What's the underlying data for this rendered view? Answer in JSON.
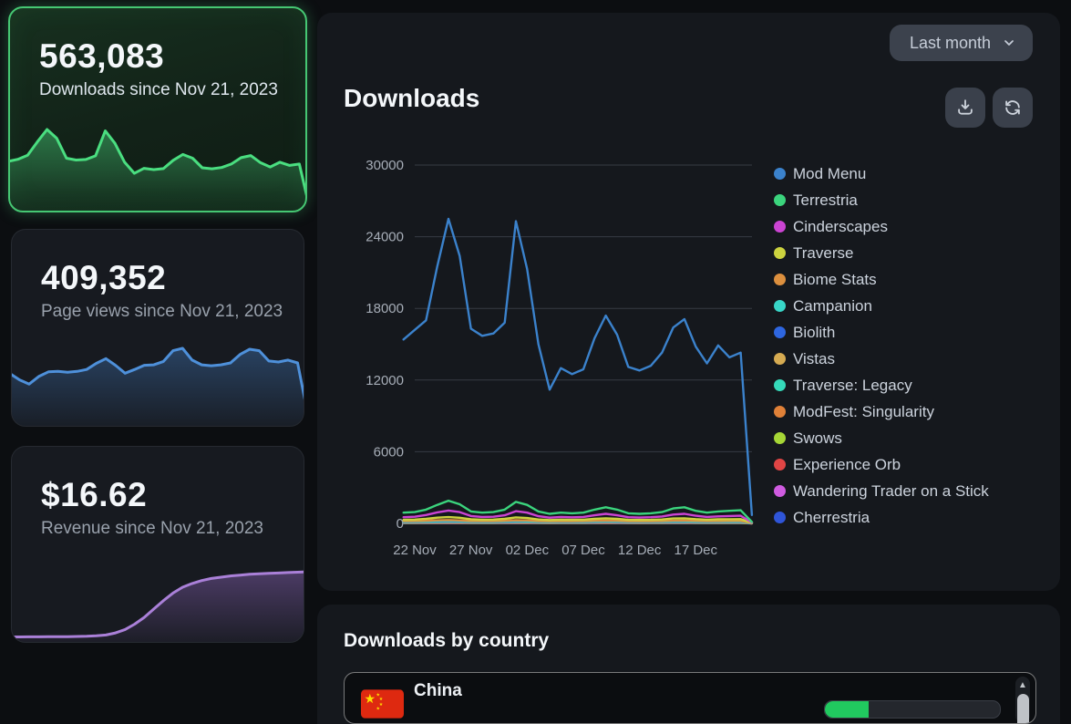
{
  "stat_cards": [
    {
      "id": "downloads",
      "value": "563,083",
      "label": "Downloads since Nov 21, 2023",
      "selected": true,
      "line_color": "#4ade80",
      "fill_color": "74,222,128",
      "spark": [
        17500,
        18300,
        19800,
        24800,
        29500,
        26200,
        18700,
        18000,
        18200,
        19600,
        29000,
        24300,
        17200,
        13000,
        14900,
        14400,
        14800,
        17900,
        20100,
        18700,
        15100,
        14700,
        15200,
        16500,
        18900,
        19700,
        17000,
        15400,
        17200,
        16000,
        16500,
        900
      ]
    },
    {
      "id": "page_views",
      "value": "409,352",
      "label": "Page views since Nov 21, 2023",
      "selected": false,
      "line_color": "#4e90da",
      "fill_color": "62,114,176",
      "spark": [
        10500,
        9200,
        8300,
        9900,
        10900,
        11000,
        10800,
        11000,
        11400,
        12700,
        13700,
        12300,
        10600,
        11400,
        12300,
        12400,
        13100,
        15400,
        15900,
        13400,
        12400,
        12200,
        12400,
        12800,
        14600,
        15700,
        15400,
        13200,
        13000,
        13400,
        12800,
        2500
      ]
    },
    {
      "id": "revenue",
      "value": "$16.62",
      "label": "Revenue since Nov 21, 2023",
      "selected": false,
      "line_color": "#aa80d8",
      "fill_color": "140,100,185",
      "spark": [
        0.55,
        0.55,
        0.56,
        0.57,
        0.58,
        0.6,
        0.62,
        0.65,
        0.7,
        0.8,
        1.0,
        1.5,
        2.3,
        3.6,
        5.2,
        7.2,
        9.2,
        11.0,
        12.4,
        13.3,
        14.0,
        14.5,
        14.8,
        15.1,
        15.3,
        15.5,
        15.6,
        15.7,
        15.8,
        15.9,
        16.0,
        16.1
      ]
    }
  ],
  "downloads_panel": {
    "title": "Downloads",
    "range_selector_label": "Last month"
  },
  "chart_data": {
    "type": "line",
    "title": "Downloads",
    "x": [
      "21 Nov",
      "22 Nov",
      "23 Nov",
      "24 Nov",
      "25 Nov",
      "26 Nov",
      "27 Nov",
      "28 Nov",
      "29 Nov",
      "30 Nov",
      "01 Dec",
      "02 Dec",
      "03 Dec",
      "04 Dec",
      "05 Dec",
      "06 Dec",
      "07 Dec",
      "08 Dec",
      "09 Dec",
      "10 Dec",
      "11 Dec",
      "12 Dec",
      "13 Dec",
      "14 Dec",
      "15 Dec",
      "16 Dec",
      "17 Dec",
      "18 Dec",
      "19 Dec",
      "20 Dec",
      "21 Dec",
      "22 Dec"
    ],
    "x_tick_labels": [
      "22 Nov",
      "27 Nov",
      "02 Dec",
      "07 Dec",
      "12 Dec",
      "17 Dec"
    ],
    "x_tick_indices": [
      1,
      6,
      11,
      16,
      21,
      26
    ],
    "y_ticks": [
      0,
      6000,
      12000,
      18000,
      24000,
      30000
    ],
    "ylim": [
      0,
      30000
    ],
    "grid": "horizontal",
    "legend_position": "right",
    "series": [
      {
        "name": "Mod Menu",
        "color": "#3b82cc",
        "values": [
          15400,
          16200,
          17000,
          21500,
          25500,
          22400,
          16300,
          15700,
          15900,
          16800,
          25300,
          21300,
          15000,
          11200,
          13000,
          12500,
          12900,
          15500,
          17400,
          15800,
          13100,
          12800,
          13200,
          14300,
          16400,
          17100,
          14800,
          13400,
          14900,
          13900,
          14300,
          700
        ]
      },
      {
        "name": "Terrestria",
        "color": "#3bd47d",
        "values": [
          900,
          950,
          1150,
          1550,
          1900,
          1600,
          1000,
          900,
          950,
          1150,
          1800,
          1550,
          1000,
          800,
          900,
          850,
          900,
          1150,
          1350,
          1150,
          850,
          800,
          850,
          950,
          1250,
          1350,
          1050,
          900,
          1000,
          1050,
          1100,
          120
        ]
      },
      {
        "name": "Cinderscapes",
        "color": "#cb44d3",
        "values": [
          520,
          560,
          700,
          920,
          1080,
          950,
          620,
          540,
          560,
          680,
          1020,
          900,
          600,
          480,
          540,
          510,
          540,
          680,
          800,
          680,
          520,
          490,
          520,
          580,
          740,
          800,
          640,
          540,
          590,
          620,
          640,
          80
        ]
      },
      {
        "name": "Traverse",
        "color": "#ccd33f",
        "values": [
          300,
          320,
          390,
          480,
          530,
          470,
          340,
          310,
          320,
          380,
          500,
          450,
          330,
          280,
          310,
          300,
          310,
          380,
          430,
          380,
          300,
          290,
          300,
          330,
          410,
          430,
          360,
          310,
          340,
          350,
          360,
          50
        ]
      },
      {
        "name": "Biome Stats",
        "color": "#dc8f3e",
        "values": [
          195,
          205,
          230,
          260,
          280,
          255,
          205,
          195,
          200,
          225,
          265,
          250,
          200,
          180,
          195,
          190,
          195,
          225,
          245,
          225,
          190,
          185,
          190,
          205,
          235,
          245,
          210,
          195,
          205,
          210,
          215,
          30
        ]
      },
      {
        "name": "Campanion",
        "color": "#38d6c8",
        "values": [
          150,
          157,
          175,
          198,
          213,
          196,
          157,
          150,
          153,
          172,
          203,
          191,
          153,
          138,
          150,
          146,
          150,
          172,
          187,
          172,
          146,
          142,
          146,
          157,
          180,
          187,
          161,
          150,
          157,
          161,
          165,
          25
        ]
      },
      {
        "name": "Biolith",
        "color": "#2e66e0",
        "values": [
          115,
          120,
          134,
          152,
          163,
          150,
          121,
          115,
          117,
          132,
          156,
          146,
          117,
          106,
          115,
          112,
          115,
          132,
          143,
          132,
          112,
          109,
          112,
          120,
          138,
          143,
          123,
          115,
          120,
          123,
          126,
          19
        ]
      },
      {
        "name": "Vistas",
        "color": "#d6ab52",
        "values": [
          90,
          94,
          105,
          119,
          128,
          118,
          95,
          90,
          92,
          103,
          122,
          115,
          92,
          83,
          90,
          88,
          90,
          103,
          112,
          103,
          88,
          85,
          88,
          94,
          108,
          112,
          96,
          90,
          94,
          96,
          99,
          15
        ]
      },
      {
        "name": "Traverse: Legacy",
        "color": "#35d9b9",
        "values": [
          72,
          75,
          84,
          95,
          102,
          94,
          76,
          72,
          73,
          82,
          98,
          92,
          73,
          66,
          72,
          70,
          72,
          82,
          90,
          82,
          70,
          68,
          70,
          75,
          86,
          90,
          77,
          72,
          75,
          77,
          79,
          12
        ]
      },
      {
        "name": "ModFest: Singularity",
        "color": "#e08138",
        "values": [
          58,
          61,
          68,
          77,
          82,
          76,
          61,
          58,
          59,
          66,
          79,
          74,
          59,
          53,
          58,
          56,
          58,
          66,
          72,
          66,
          56,
          55,
          56,
          61,
          70,
          72,
          62,
          58,
          61,
          62,
          64,
          10
        ]
      },
      {
        "name": "Swows",
        "color": "#a6d636",
        "values": [
          46,
          48,
          54,
          61,
          65,
          60,
          48,
          46,
          47,
          53,
          63,
          59,
          47,
          42,
          46,
          45,
          46,
          53,
          58,
          53,
          45,
          43,
          45,
          48,
          55,
          58,
          49,
          46,
          48,
          49,
          51,
          8
        ]
      },
      {
        "name": "Experience Orb",
        "color": "#e04545",
        "values": [
          37,
          39,
          43,
          49,
          52,
          48,
          39,
          37,
          38,
          42,
          50,
          47,
          38,
          34,
          37,
          36,
          37,
          42,
          46,
          42,
          36,
          35,
          36,
          39,
          44,
          46,
          40,
          37,
          39,
          40,
          41,
          6
        ]
      },
      {
        "name": "Wandering Trader on a Stick",
        "color": "#cf5be0",
        "values": [
          28,
          29,
          33,
          37,
          40,
          37,
          30,
          28,
          29,
          32,
          38,
          36,
          29,
          26,
          28,
          27,
          28,
          32,
          35,
          32,
          27,
          26,
          27,
          29,
          34,
          35,
          30,
          28,
          29,
          30,
          31,
          5
        ]
      },
      {
        "name": "Cherrestria",
        "color": "#2f55d9",
        "values": [
          18,
          19,
          21,
          24,
          26,
          24,
          19,
          18,
          19,
          21,
          25,
          23,
          19,
          17,
          18,
          18,
          18,
          21,
          23,
          21,
          18,
          17,
          18,
          19,
          22,
          23,
          20,
          18,
          19,
          20,
          20,
          3
        ]
      }
    ]
  },
  "country_panel": {
    "title": "Downloads by country",
    "rows": [
      {
        "country": "China",
        "flag": "china-flag-icon",
        "progress_percent": 25,
        "bar_color": "#21c95f"
      }
    ],
    "scrollbar": {
      "up_arrow": "▲"
    }
  },
  "colors": {
    "accent_green": "#46c773",
    "brand_green": "#21c95f",
    "grid": "#363b43",
    "axis_text": "#a6adb7"
  }
}
